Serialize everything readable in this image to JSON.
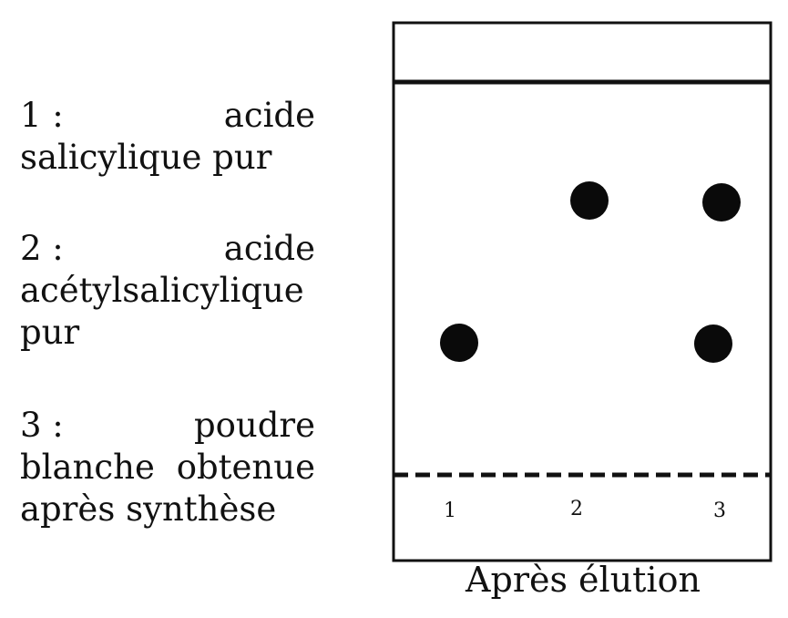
{
  "legend": [
    {
      "number": "1 :",
      "words": [
        "acide",
        "salicylique pur"
      ]
    },
    {
      "number": "2 :",
      "words": [
        "acide",
        "acétylsalicylique",
        "pur"
      ]
    },
    {
      "number": "3 :",
      "words": [
        "poudre",
        "blanche",
        "obtenue",
        "après synthèse"
      ]
    }
  ],
  "lanes": [
    "1",
    "2",
    "3"
  ],
  "caption": "Après élution",
  "spots": [
    {
      "lane": "1",
      "label": "spot-lane-1"
    },
    {
      "lane": "2",
      "label": "spot-lane-2"
    },
    {
      "lane": "3",
      "label": "spot-lane-3-upper"
    },
    {
      "lane": "3",
      "label": "spot-lane-3-lower"
    }
  ],
  "colors": {
    "ink": "#111111",
    "spot": "#0a0a0a",
    "background": "#ffffff"
  }
}
